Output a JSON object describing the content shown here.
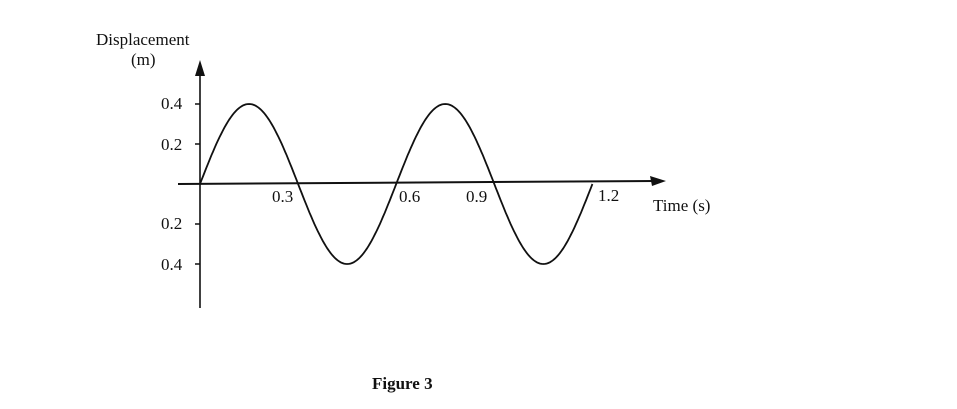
{
  "chart_data": {
    "type": "line",
    "ylabel_line1": "Displacement",
    "ylabel_line2": "(m)",
    "xlabel": "Time (s)",
    "x_ticks": [
      "0.3",
      "0.6",
      "0.9",
      "1.2"
    ],
    "y_ticks_positive": [
      "0.4",
      "0.2"
    ],
    "y_ticks_negative": [
      "0.2",
      "0.4"
    ],
    "xlim": [
      0,
      1.2
    ],
    "ylim": [
      -0.4,
      0.4
    ],
    "function": "sine",
    "amplitude": 0.4,
    "period": 0.6,
    "grid": false,
    "color": "#111111"
  },
  "caption": "Figure 3"
}
